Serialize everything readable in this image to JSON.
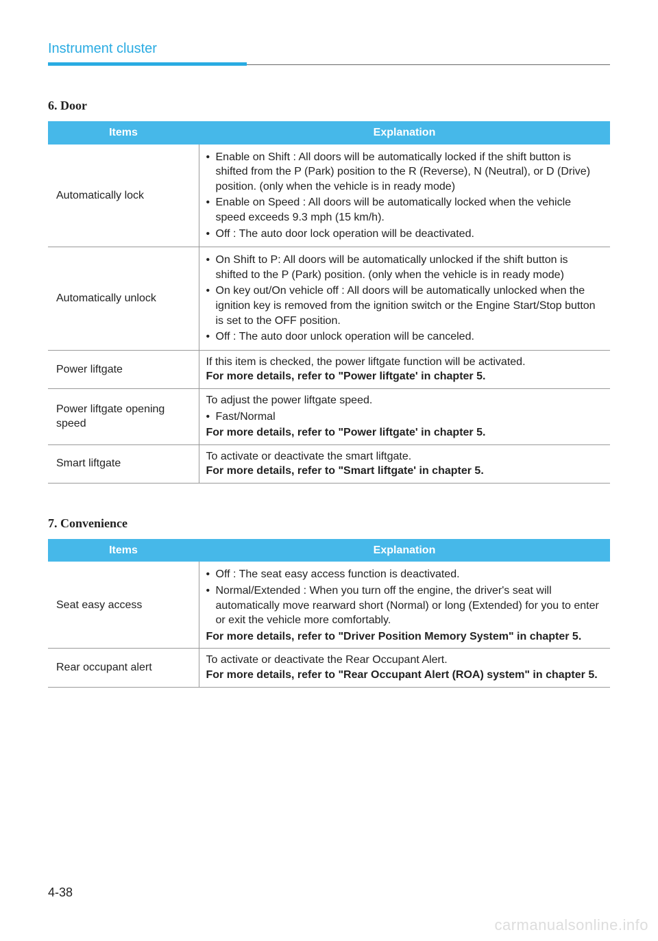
{
  "header": {
    "title": "Instrument cluster",
    "accent_color": "#29abe2"
  },
  "sections": [
    {
      "title": "6.  Door",
      "columns": {
        "items": "Items",
        "explanation": "Explanation"
      },
      "rows": [
        {
          "item": "Automatically lock",
          "bullets": [
            "Enable on Shift : All doors will be automatically locked if the shift button is shifted from the P (Park) position to the R (Reverse), N (Neutral), or D (Drive) position. (only when the vehicle is in ready mode)",
            "Enable on Speed : All doors will be automatically locked when the vehicle speed exceeds 9.3 mph (15 km/h).",
            "Off : The auto door lock operation will be deactivated."
          ]
        },
        {
          "item": "Automatically unlock",
          "bullets": [
            "On Shift to P: All doors will be automatically unlocked if the shift button is shifted to the P (Park) position. (only when the vehicle is in ready mode)",
            "On key out/On vehicle off : All doors will be automatically unlocked when the ignition key is removed from the ignition switch or the Engine Start/Stop button is set to the OFF position.",
            "Off : The auto door unlock operation will be canceled."
          ]
        },
        {
          "item": "Power liftgate",
          "text": "If this item is checked, the power liftgate function will be activated.",
          "bold_after": "For more details, refer to \"Power liftgate' in chapter 5."
        },
        {
          "item": "Power liftgate opening speed",
          "text": "To adjust the power liftgate speed.",
          "bullets_inline": [
            "Fast/Normal"
          ],
          "bold_after": "For more details, refer to \"Power liftgate' in chapter 5."
        },
        {
          "item": "Smart liftgate",
          "text": "To activate or deactivate the smart liftgate.",
          "bold_after": "For more details, refer to \"Smart liftgate' in chapter 5."
        }
      ]
    },
    {
      "title": "7.  Convenience",
      "columns": {
        "items": "Items",
        "explanation": "Explanation"
      },
      "rows": [
        {
          "item": "Seat easy access",
          "bullets": [
            "Off : The seat easy access function is deactivated.",
            "Normal/Extended : When you turn off the engine, the driver's seat will automatically move rearward short (Normal) or long (Extended) for you to enter or exit the vehicle more comfortably."
          ],
          "bold_after": "For more details, refer to \"Driver Position Memory System\" in chapter 5."
        },
        {
          "item": "Rear occupant alert",
          "text": "To activate or deactivate the Rear Occupant Alert.",
          "bold_after": "For more details, refer to \"Rear Occupant Alert (ROA) system\" in chapter 5."
        }
      ]
    }
  ],
  "page_number": "4-38",
  "watermark": "carmanualsonline.info",
  "colors": {
    "header_bg": "#46b8e9",
    "header_fg": "#ffffff",
    "border": "#999999",
    "text": "#222222",
    "watermark": "#dddddd"
  }
}
